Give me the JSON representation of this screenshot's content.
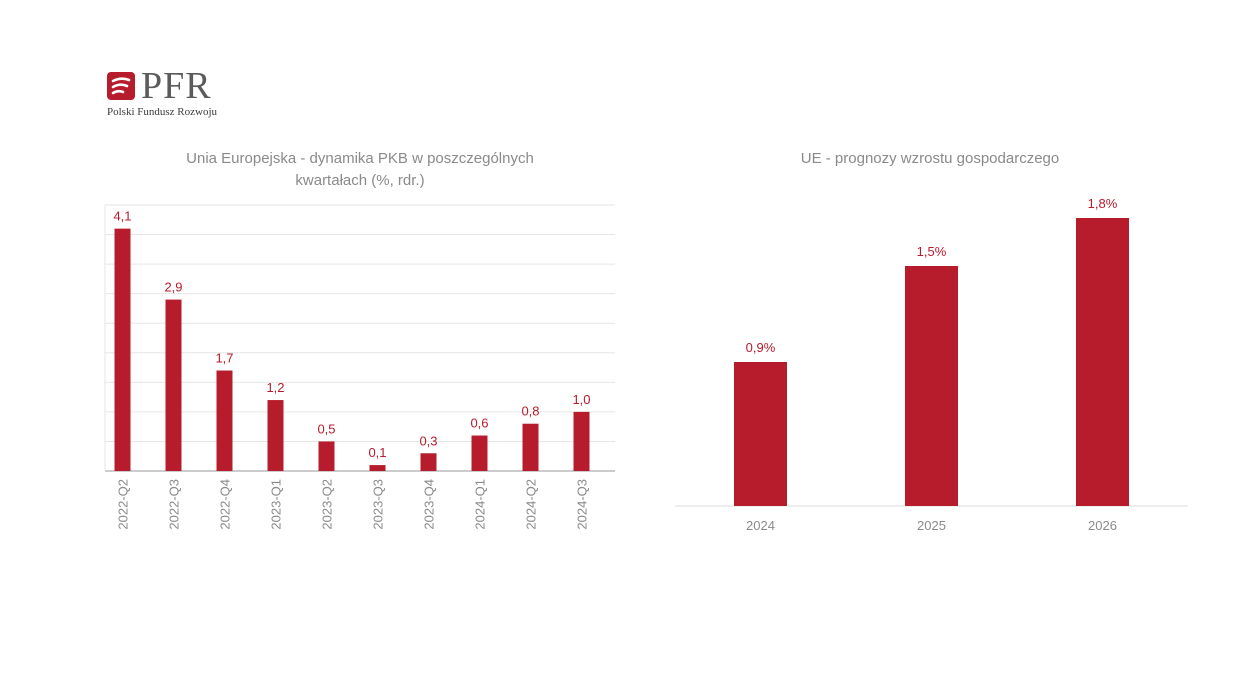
{
  "logo": {
    "brand": "PFR",
    "subtitle": "Polski Fundusz Rozwoju",
    "brand_color": "#b71c2c"
  },
  "colors": {
    "bar": "#b71c2c",
    "label": "#b71c2c",
    "title": "#8a8a8a",
    "tick": "#8a8a8a",
    "grid": "#e6e6e6"
  },
  "chart_data": [
    {
      "type": "bar",
      "title": "Unia Europejska - dynamika PKB w poszczególnych kwartałach (%, rdr.)",
      "categories": [
        "2022-Q2",
        "2022-Q3",
        "2022-Q4",
        "2023-Q1",
        "2023-Q2",
        "2023-Q3",
        "2023-Q4",
        "2024-Q1",
        "2024-Q2",
        "2024-Q3"
      ],
      "values": [
        4.1,
        2.9,
        1.7,
        1.2,
        0.5,
        0.1,
        0.3,
        0.6,
        0.8,
        1.0
      ],
      "value_labels": [
        "4,1",
        "2,9",
        "1,7",
        "1,2",
        "0,5",
        "0,1",
        "0,3",
        "0,6",
        "0,8",
        "1,0"
      ],
      "xlabel": "",
      "ylabel": "",
      "ylim": [
        0,
        4.5
      ],
      "grid": true,
      "tick_rotation": "vertical"
    },
    {
      "type": "bar",
      "title": "UE - prognozy wzrostu gospodarczego",
      "categories": [
        "2024",
        "2025",
        "2026"
      ],
      "values": [
        0.9,
        1.5,
        1.8
      ],
      "value_labels": [
        "0,9%",
        "1,5%",
        "1,8%"
      ],
      "xlabel": "",
      "ylabel": "",
      "ylim": [
        0,
        1.9
      ],
      "grid": false
    }
  ]
}
